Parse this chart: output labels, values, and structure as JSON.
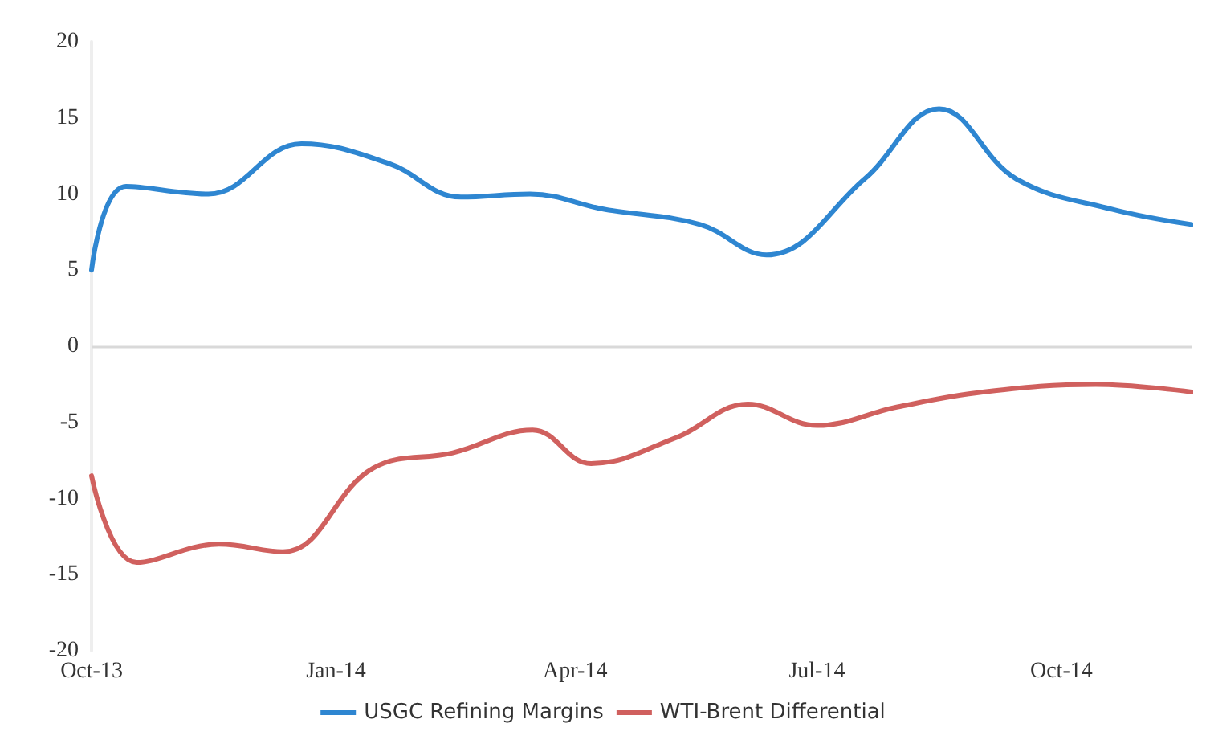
{
  "chart_data": {
    "type": "line",
    "ylim": [
      -20,
      20
    ],
    "yticks": [
      -20,
      -15,
      -10,
      -5,
      0,
      5,
      10,
      15,
      20
    ],
    "xlim": [
      "2013-10-01",
      "2014-11-19"
    ],
    "xticks": [
      {
        "value": "2013-10-01",
        "label": "Oct-13"
      },
      {
        "value": "2014-01-01",
        "label": "Jan-14"
      },
      {
        "value": "2014-04-01",
        "label": "Apr-14"
      },
      {
        "value": "2014-07-01",
        "label": "Jul-14"
      },
      {
        "value": "2014-10-01",
        "label": "Oct-14"
      }
    ],
    "grid": false,
    "legend": "bottom",
    "marker": "none",
    "line_style": "solid",
    "ref_lines": [
      {
        "axis": "y",
        "value": 0,
        "color": "#d9d9d9"
      }
    ],
    "series": [
      {
        "name": "USGC Refining Margins",
        "color": "#2e86d1",
        "x": [
          "2013-10-01",
          "2013-10-14",
          "2013-11-14",
          "2013-12-19",
          "2014-01-21",
          "2014-02-17",
          "2014-03-15",
          "2014-04-12",
          "2014-05-18",
          "2014-06-12",
          "2014-07-19",
          "2014-08-16",
          "2014-09-14",
          "2014-10-20",
          "2014-11-19"
        ],
        "values": [
          5,
          10.5,
          10,
          13.3,
          12,
          9.8,
          10,
          9,
          8,
          6,
          11,
          15.6,
          11,
          9,
          8
        ]
      },
      {
        "name": "WTI-Brent Differential",
        "color": "#d0605e",
        "x": [
          "2013-10-01",
          "2013-10-18",
          "2013-11-18",
          "2013-12-12",
          "2014-01-15",
          "2014-02-14",
          "2014-03-16",
          "2014-04-07",
          "2014-05-09",
          "2014-06-05",
          "2014-07-01",
          "2014-07-31",
          "2014-09-02",
          "2014-10-14",
          "2014-11-19"
        ],
        "values": [
          -8.5,
          -14.2,
          -13,
          -13.5,
          -8,
          -7,
          -5.5,
          -7.7,
          -6,
          -3.8,
          -5.2,
          -4,
          -3,
          -2.5,
          -3
        ]
      }
    ]
  }
}
